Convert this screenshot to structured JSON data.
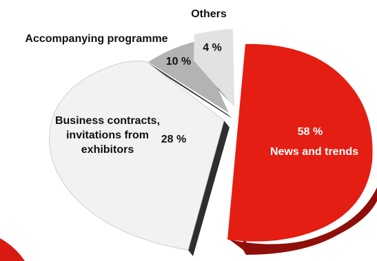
{
  "chart_data": {
    "type": "pie",
    "style": "exploded-3d",
    "slices": [
      {
        "label": "News and trends",
        "value_text": "58 %",
        "value": 58,
        "color": "#e41e13"
      },
      {
        "label": "Business contracts, invitations from exhibitors",
        "label_lines": [
          "Business contracts,",
          "invitations from",
          "exhibitors"
        ],
        "value_text": "28 %",
        "value": 28,
        "color": "#f2f2f2"
      },
      {
        "label": "Accompanying programme",
        "value_text": "10 %",
        "value": 10,
        "color": "#b3b3b3"
      },
      {
        "label": "Others",
        "value_text": "4 %",
        "value": 4,
        "color": "#e2e2e2"
      }
    ],
    "colors": {
      "side_red": "#8e0f0a",
      "side_dark": "#2e2e2e",
      "partial_red": "#d81b12"
    }
  }
}
